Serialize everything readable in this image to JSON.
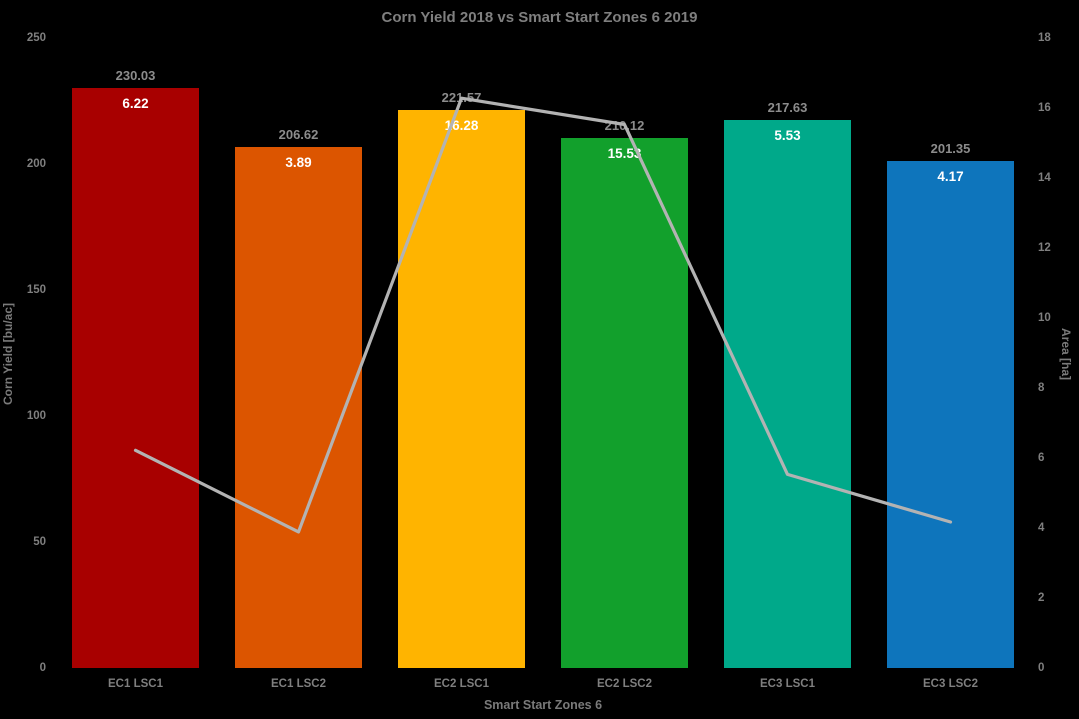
{
  "chart_data": {
    "type": "bar",
    "title": "Corn Yield 2018 vs Smart Start Zones 6 2019",
    "xlabel": "Smart Start Zones 6",
    "ylabel_left": "Corn Yield [bu/ac]",
    "ylabel_right": "Area [ha]",
    "categories": [
      "EC1 LSC1",
      "EC1 LSC2",
      "EC2 LSC1",
      "EC2 LSC2",
      "EC3 LSC1",
      "EC3 LSC2"
    ],
    "series": [
      {
        "name": "Corn Yield [bu/ac]",
        "type": "bar",
        "axis": "left",
        "values": [
          230.03,
          206.62,
          221.57,
          210.12,
          217.63,
          201.35
        ],
        "value_labels": [
          "230.03",
          "206.62",
          "221.57",
          "210.12",
          "217.63",
          "201.35"
        ],
        "bar_colors": [
          "#a80000",
          "#dc5500",
          "#ffb400",
          "#12a02c",
          "#00a98a",
          "#0e75bc"
        ]
      },
      {
        "name": "Area [ha]",
        "type": "line",
        "axis": "right",
        "values": [
          6.22,
          3.89,
          16.28,
          15.53,
          5.53,
          4.17
        ],
        "value_labels": [
          "6.22",
          "3.89",
          "16.28",
          "15.53",
          "5.53",
          "4.17"
        ],
        "color": "#b3b3b3"
      }
    ],
    "ylim_left": [
      0,
      250
    ],
    "ylim_right": [
      0,
      18
    ],
    "yticks_left": [
      "0",
      "50",
      "100",
      "150",
      "200",
      "250"
    ],
    "yticks_right": [
      "0",
      "2",
      "4",
      "6",
      "8",
      "10",
      "12",
      "14",
      "16",
      "18"
    ],
    "grid": false,
    "legend": "none",
    "background": "#000000",
    "text_color": "#7f7f7f"
  }
}
